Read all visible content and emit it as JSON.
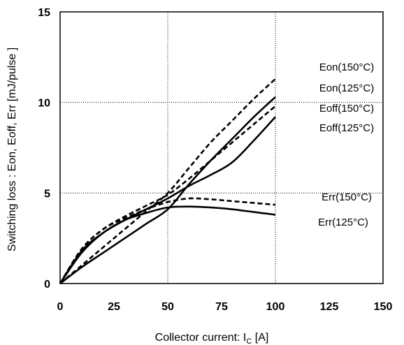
{
  "chart_data": {
    "type": "line",
    "xlabel_main": "Collector current: I",
    "xlabel_sub": "C",
    "xlabel_unit": " [A]",
    "ylabel": "Switching loss  : Eon, Eoff, Err  [mJ/pulse ]",
    "xlim": [
      0,
      150
    ],
    "ylim": [
      0,
      15
    ],
    "xticks": [
      0,
      25,
      50,
      75,
      100,
      125,
      150
    ],
    "yticks": [
      0,
      5,
      10,
      15
    ],
    "grid": "dotted vertical at 50 and 100, dotted horizontal at 5 and 10",
    "colors": {
      "line": "#000000",
      "grid": "#000000",
      "background": "#ffffff"
    },
    "series": [
      {
        "name": "Eon(150°C)",
        "style": "dashed",
        "x": [
          0,
          10,
          20,
          30,
          40,
          50,
          60,
          70,
          80,
          90,
          100
        ],
        "y": [
          0,
          1.0,
          2.0,
          3.0,
          4.0,
          5.0,
          6.4,
          7.8,
          9.0,
          10.2,
          11.3
        ]
      },
      {
        "name": "Eon(125°C)",
        "style": "solid",
        "x": [
          0,
          10,
          20,
          30,
          40,
          50,
          60,
          70,
          80,
          90,
          100
        ],
        "y": [
          0,
          0.9,
          1.7,
          2.5,
          3.3,
          4.1,
          5.5,
          6.8,
          8.0,
          9.2,
          10.3
        ]
      },
      {
        "name": "Eoff(150°C)",
        "style": "dashed",
        "x": [
          0,
          10,
          20,
          30,
          40,
          50,
          60,
          70,
          80,
          90,
          100
        ],
        "y": [
          0,
          1.9,
          3.0,
          3.7,
          4.3,
          4.9,
          5.8,
          6.8,
          7.8,
          8.8,
          9.8
        ]
      },
      {
        "name": "Eoff(125°C)",
        "style": "solid",
        "x": [
          0,
          10,
          20,
          30,
          40,
          50,
          60,
          70,
          80,
          90,
          100
        ],
        "y": [
          0,
          1.8,
          2.8,
          3.5,
          4.1,
          4.7,
          5.4,
          6.0,
          6.7,
          7.9,
          9.2
        ]
      },
      {
        "name": "Err(150°C)",
        "style": "dashed",
        "x": [
          0,
          10,
          20,
          30,
          40,
          50,
          60,
          70,
          80,
          90,
          100
        ],
        "y": [
          0,
          1.9,
          3.0,
          3.6,
          4.1,
          4.5,
          4.7,
          4.65,
          4.55,
          4.45,
          4.35
        ]
      },
      {
        "name": "Err(125°C)",
        "style": "solid",
        "x": [
          0,
          10,
          20,
          30,
          40,
          50,
          60,
          70,
          80,
          90,
          100
        ],
        "y": [
          0,
          1.7,
          2.8,
          3.5,
          3.9,
          4.2,
          4.25,
          4.2,
          4.1,
          3.95,
          3.8
        ]
      }
    ]
  }
}
